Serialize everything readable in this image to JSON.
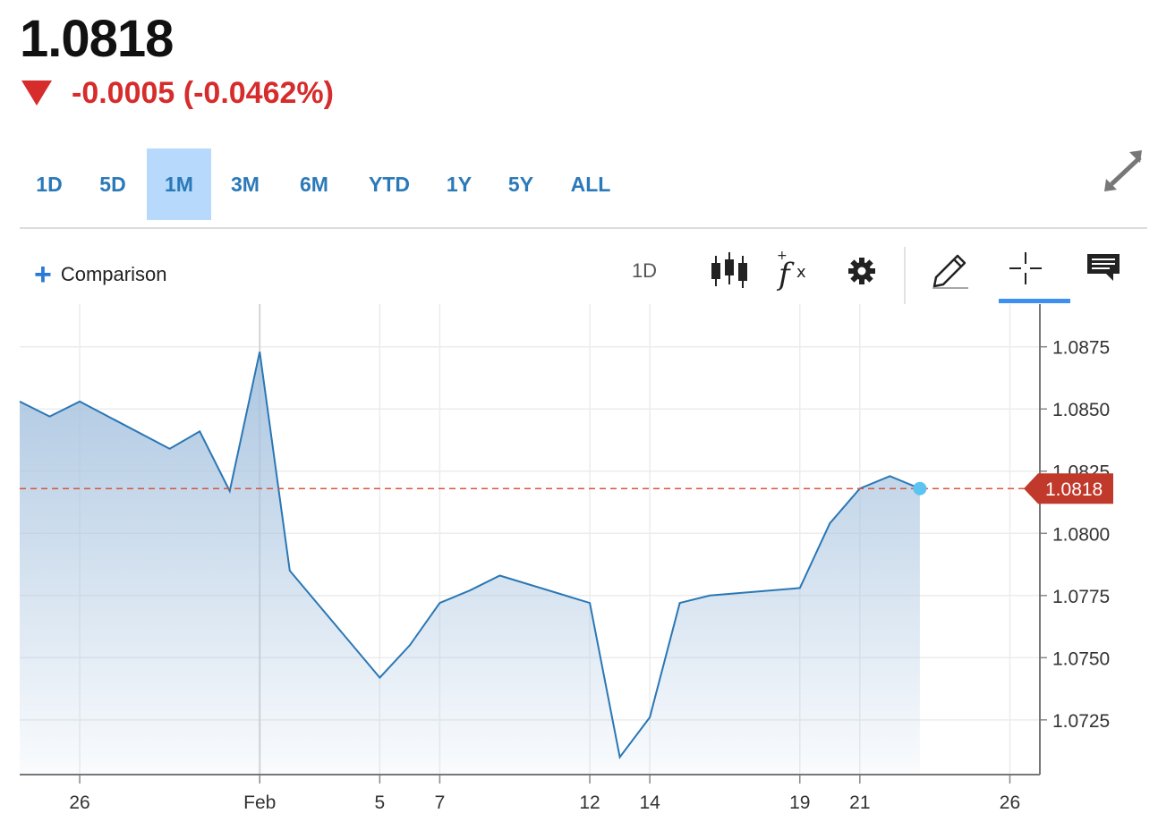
{
  "quote": {
    "price": "1.0818",
    "change": "-0.0005 (-0.0462%)",
    "direction": "down",
    "down_color": "#d62c2c"
  },
  "range_tabs": [
    {
      "label": "1D",
      "active": false
    },
    {
      "label": "5D",
      "active": false
    },
    {
      "label": "1M",
      "active": true
    },
    {
      "label": "3M",
      "active": false
    },
    {
      "label": "6M",
      "active": false
    },
    {
      "label": "YTD",
      "active": false
    },
    {
      "label": "1Y",
      "active": false
    },
    {
      "label": "5Y",
      "active": false
    },
    {
      "label": "ALL",
      "active": false
    }
  ],
  "toolbar": {
    "comparison_label": "Comparison",
    "interval_label": "1D",
    "icons": [
      "expand-icon",
      "plus-icon",
      "candlestick-icon",
      "function-icon",
      "gear-icon",
      "pencil-icon",
      "crosshair-icon",
      "comment-icon"
    ],
    "active_tool": "crosshair-icon",
    "accent_color": "#3d8ff0"
  },
  "chart_data": {
    "type": "area",
    "series": [
      {
        "x": [
          "2024-01-24",
          "2024-01-25",
          "2024-01-26",
          "2024-01-29",
          "2024-01-30",
          "2024-01-31",
          "2024-02-01",
          "2024-02-02",
          "2024-02-05",
          "2024-02-06",
          "2024-02-07",
          "2024-02-08",
          "2024-02-09",
          "2024-02-12",
          "2024-02-13",
          "2024-02-14",
          "2024-02-15",
          "2024-02-16",
          "2024-02-19",
          "2024-02-20",
          "2024-02-21",
          "2024-02-22",
          "2024-02-23"
        ],
        "values": [
          1.0853,
          1.0847,
          1.0853,
          1.0834,
          1.0841,
          1.0817,
          1.0873,
          1.0785,
          1.0742,
          1.0755,
          1.0772,
          1.0777,
          1.0783,
          1.0772,
          1.071,
          1.0726,
          1.0772,
          1.0775,
          1.0778,
          1.0804,
          1.0818,
          1.0823,
          1.0818
        ]
      }
    ],
    "x_ticks": [
      {
        "x": "2024-01-26",
        "label": "26"
      },
      {
        "x": "2024-02-01",
        "label": "Feb"
      },
      {
        "x": "2024-02-05",
        "label": "5"
      },
      {
        "x": "2024-02-07",
        "label": "7"
      },
      {
        "x": "2024-02-12",
        "label": "12"
      },
      {
        "x": "2024-02-14",
        "label": "14"
      },
      {
        "x": "2024-02-19",
        "label": "19"
      },
      {
        "x": "2024-02-21",
        "label": "21"
      },
      {
        "x": "2024-02-26",
        "label": "26"
      }
    ],
    "y_ticks": [
      "1.0725",
      "1.0750",
      "1.0775",
      "1.0800",
      "1.0825",
      "1.0850",
      "1.0875"
    ],
    "ylim": [
      1.0703,
      1.089
    ],
    "xlim": [
      "2024-01-24",
      "2024-02-27"
    ],
    "last_price_label": "1.0818",
    "last_price": 1.0818,
    "grid": true,
    "y_axis_position": "right",
    "line_color": "#2a77b5",
    "fill_color": "#a7c3df",
    "marker_color": "#5bc4f1",
    "price_line_color": "#d9533e",
    "badge_color": "#c0392b"
  }
}
